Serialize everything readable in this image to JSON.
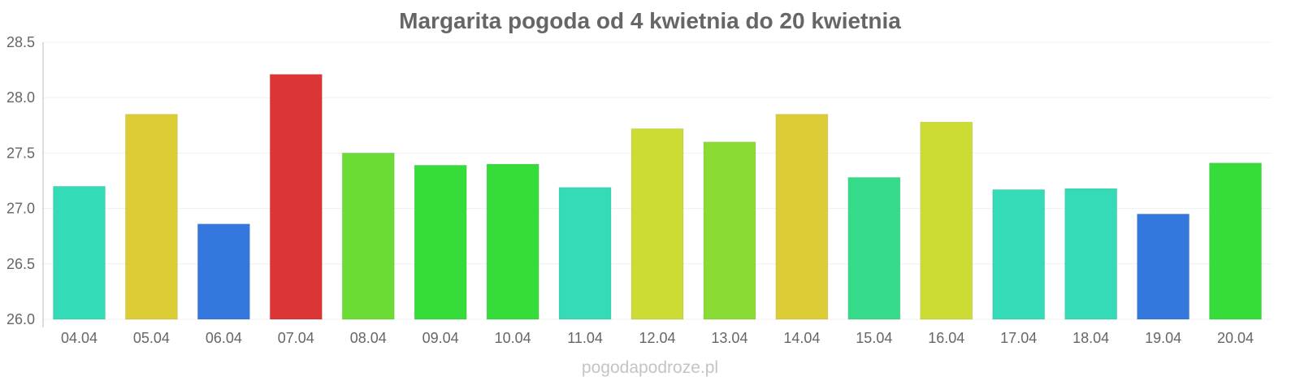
{
  "chart_data": {
    "type": "bar",
    "title": "Margarita pogoda od 4 kwietnia do 20 kwietnia",
    "xlabel": "",
    "ylabel": "",
    "ylim": [
      26.0,
      28.5
    ],
    "yticks": [
      "26.0",
      "26.5",
      "27.0",
      "27.5",
      "28.0",
      "28.5"
    ],
    "grid": true,
    "categories": [
      "04.04",
      "05.04",
      "06.04",
      "07.04",
      "08.04",
      "09.04",
      "10.04",
      "11.04",
      "12.04",
      "13.04",
      "14.04",
      "15.04",
      "16.04",
      "17.04",
      "18.04",
      "19.04",
      "20.04"
    ],
    "values": [
      27.2,
      27.85,
      26.86,
      28.21,
      27.5,
      27.39,
      27.4,
      27.19,
      27.72,
      27.6,
      27.85,
      27.28,
      27.78,
      27.17,
      27.18,
      26.95,
      27.41
    ],
    "colors": [
      "#34dbb7",
      "#dccc35",
      "#3578dd",
      "#dc3535",
      "#6adc35",
      "#35dc3a",
      "#35dc3a",
      "#35dbb7",
      "#cddc35",
      "#8adc35",
      "#dccc35",
      "#35db88",
      "#cddc35",
      "#35dbb7",
      "#35dbb7",
      "#3578dd",
      "#35dc3a"
    ]
  },
  "watermark": "pogodapodroze.pl"
}
